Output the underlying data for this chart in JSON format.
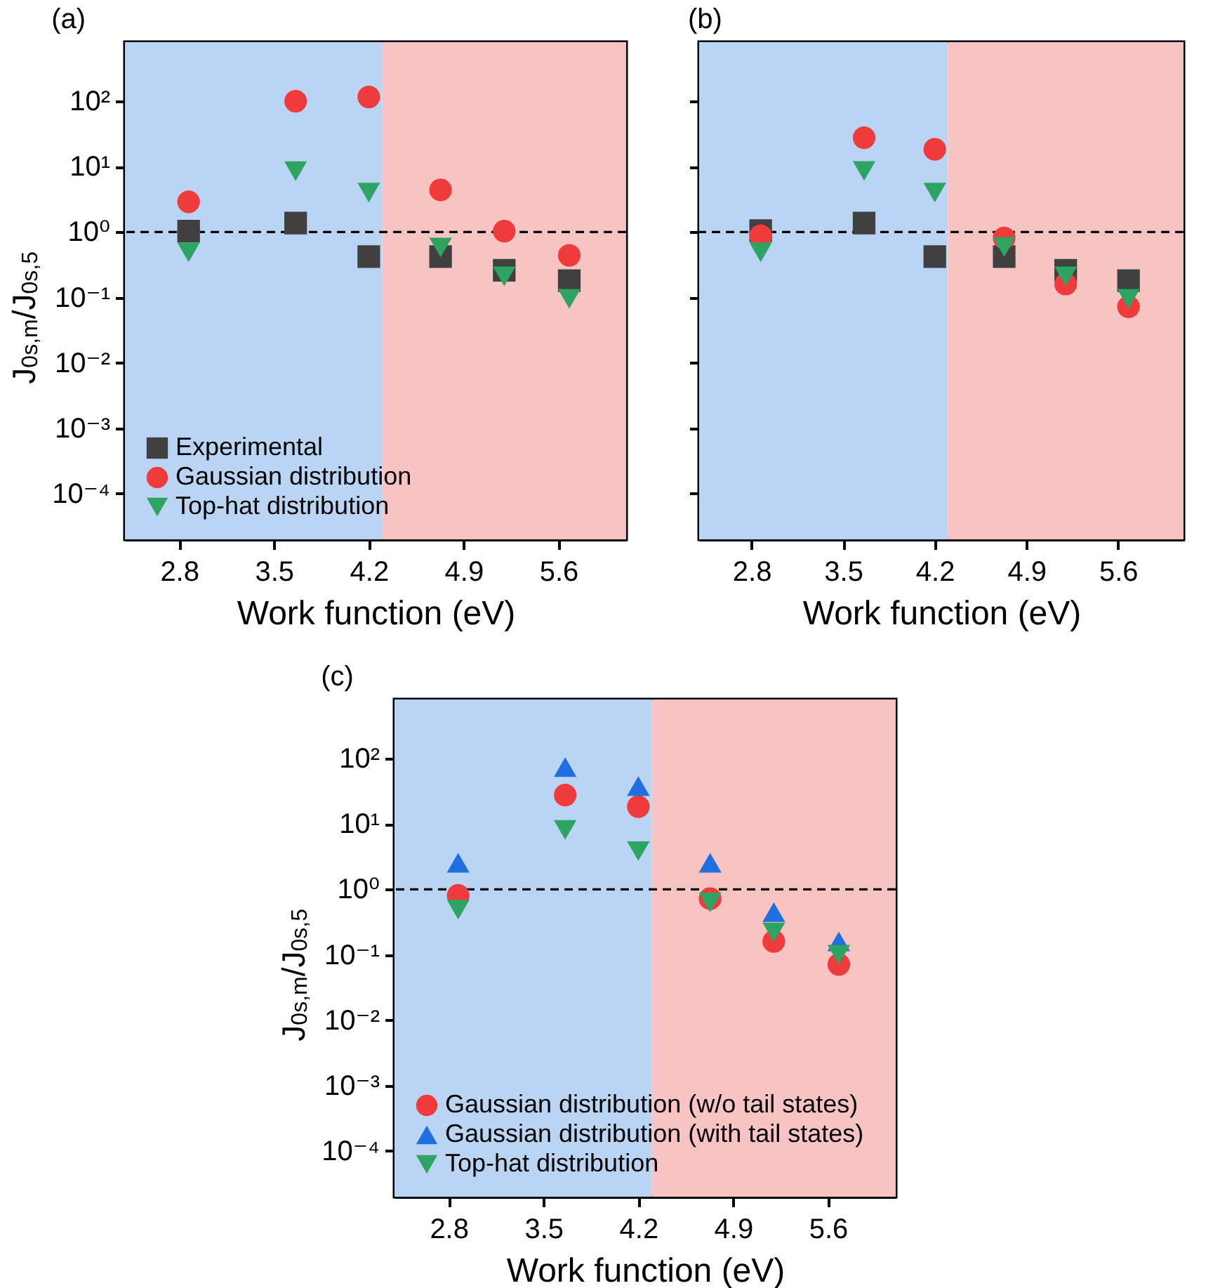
{
  "chart_data": [
    {
      "type": "scatter",
      "title": "(a)",
      "xlabel": "Work function (eV)",
      "ylabel": "J$_{0s,m}$/J$_{0s,5}$",
      "x": [
        2.87,
        3.66,
        4.2,
        4.73,
        5.2,
        5.68
      ],
      "xlim": [
        2.4,
        6.1
      ],
      "xticks": [
        2.8,
        3.5,
        4.2,
        4.9,
        5.6
      ],
      "ylim": [
        2e-05,
        800
      ],
      "log": "y",
      "yticks": [
        {
          "value": 0.0001,
          "label": "10⁻⁴"
        },
        {
          "value": 0.001,
          "label": "10⁻³"
        },
        {
          "value": 0.01,
          "label": "10⁻²"
        },
        {
          "value": 0.1,
          "label": "10⁻¹"
        },
        {
          "value": 1,
          "label": "10⁰"
        },
        {
          "value": 10,
          "label": "10¹"
        },
        {
          "value": 100,
          "label": "10²"
        }
      ],
      "legend": "bottom left",
      "series": [
        {
          "name": "Experimental",
          "color": "#404040",
          "marker": "square",
          "values": [
            1.03,
            1.37,
            0.42,
            0.42,
            0.26,
            0.18
          ]
        },
        {
          "name": "Gaussian distribution",
          "color": "#ef3b3b",
          "marker": "circle",
          "values": [
            2.9,
            100,
            116,
            4.4,
            1.03,
            0.44
          ]
        },
        {
          "name": "Top-hat distribution",
          "color": "#2ea463",
          "marker": "triangle-down",
          "values": [
            0.49,
            8.5,
            4.0,
            0.58,
            0.21,
            0.095
          ]
        }
      ],
      "bands": [
        {
          "axis": "x",
          "from": 2.4,
          "to": 4.3,
          "color": "#bad4f3"
        },
        {
          "axis": "x",
          "from": 4.3,
          "to": 6.1,
          "color": "#f7c3c3"
        }
      ],
      "ref_lines": [
        {
          "axis": "y",
          "value": 1,
          "color": "#000000",
          "line_style": "dashed"
        }
      ]
    },
    {
      "type": "scatter",
      "title": "(b)",
      "xlabel": "Work function (eV)",
      "x": [
        2.87,
        3.66,
        4.2,
        4.73,
        5.2,
        5.68
      ],
      "xlim": [
        2.4,
        6.1
      ],
      "xticks": [
        2.8,
        3.5,
        4.2,
        4.9,
        5.6
      ],
      "ylim": [
        2e-05,
        800
      ],
      "log": "y",
      "yticks": [
        0.0001,
        0.001,
        0.01,
        0.1,
        1,
        10,
        100
      ],
      "tick_labels": "x",
      "series": [
        {
          "color": "#404040",
          "marker": "square",
          "values": [
            1.05,
            1.37,
            0.42,
            0.42,
            0.26,
            0.18
          ]
        },
        {
          "color": "#ef3b3b",
          "marker": "circle",
          "values": [
            0.88,
            27.7,
            18.4,
            0.81,
            0.16,
            0.072
          ]
        },
        {
          "color": "#2ea463",
          "marker": "triangle-down",
          "values": [
            0.49,
            8.6,
            4.0,
            0.59,
            0.21,
            0.095
          ]
        }
      ],
      "bands": [
        {
          "axis": "x",
          "from": 2.4,
          "to": 4.3,
          "color": "#bad4f3"
        },
        {
          "axis": "x",
          "from": 4.3,
          "to": 6.1,
          "color": "#f7c3c3"
        }
      ],
      "ref_lines": [
        {
          "axis": "y",
          "value": 1,
          "color": "#000000",
          "line_style": "dashed"
        }
      ]
    },
    {
      "type": "scatter",
      "title": "(c)",
      "xlabel": "Work function (eV)",
      "ylabel": "J$_{0s,m}$/J$_{0s,5}$",
      "x": [
        2.87,
        3.66,
        4.2,
        4.73,
        5.2,
        5.68
      ],
      "xlim": [
        2.4,
        6.1
      ],
      "xticks": [
        2.8,
        3.5,
        4.2,
        4.9,
        5.6
      ],
      "ylim": [
        2e-05,
        800
      ],
      "log": "y",
      "yticks": [
        {
          "value": 0.0001,
          "label": "10⁻⁴"
        },
        {
          "value": 0.001,
          "label": "10⁻³"
        },
        {
          "value": 0.01,
          "label": "10⁻²"
        },
        {
          "value": 0.1,
          "label": "10⁻¹"
        },
        {
          "value": 1,
          "label": "10⁰"
        },
        {
          "value": 10,
          "label": "10¹"
        },
        {
          "value": 100,
          "label": "10²"
        }
      ],
      "legend": "bottom left",
      "series": [
        {
          "name": "Gaussian distribution (w/o tail states)",
          "color": "#ef3b3b",
          "marker": "circle",
          "values": [
            0.81,
            27.7,
            18.4,
            0.72,
            0.16,
            0.071
          ]
        },
        {
          "name": "Gaussian distribution (with tail states)",
          "color": "#1f6fe0",
          "marker": "triangle",
          "values": [
            2.55,
            74,
            38,
            2.55,
            0.45,
            0.16
          ]
        },
        {
          "name": "Top-hat distribution",
          "color": "#2ea463",
          "marker": "triangle-down",
          "values": [
            0.49,
            8.1,
            3.85,
            0.63,
            0.22,
            0.1
          ]
        }
      ],
      "bands": [
        {
          "axis": "x",
          "from": 2.4,
          "to": 4.3,
          "color": "#bad4f3"
        },
        {
          "axis": "x",
          "from": 4.3,
          "to": 6.1,
          "color": "#f7c3c3"
        }
      ],
      "ref_lines": [
        {
          "axis": "y",
          "value": 1,
          "color": "#000000",
          "line_style": "dashed"
        }
      ]
    }
  ]
}
